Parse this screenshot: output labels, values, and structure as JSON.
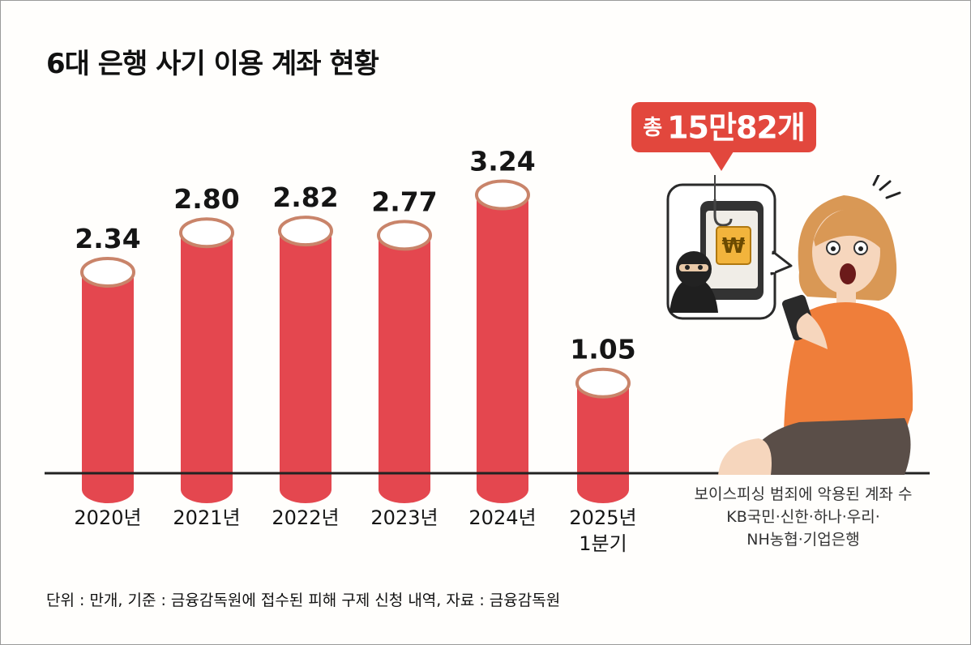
{
  "title": "6대 은행 사기 이용 계좌 현황",
  "callout": {
    "prefix": "총",
    "value": "15만82개"
  },
  "caption": [
    "보이스피싱 범죄에 악용된 계좌 수",
    "KB국민·신한·하나·우리·",
    "NH농협·기업은행"
  ],
  "footnote": "단위 : 만개, 기준 : 금융감독원에 접수된 피해 구제 신청 내역, 자료 : 금융감독원",
  "colors": {
    "bar": "#e4474f",
    "bar_rim": "#c9846a",
    "baseline": "#222222"
  },
  "icons": {
    "phone": "phone-icon",
    "hook": "fish-hook-icon",
    "won": "won-sign-icon",
    "thief": "masked-thief-icon"
  },
  "chart_data": {
    "type": "bar",
    "categories": [
      [
        "2020년"
      ],
      [
        "2021년"
      ],
      [
        "2022년"
      ],
      [
        "2023년"
      ],
      [
        "2024년"
      ],
      [
        "2025년",
        "1분기"
      ]
    ],
    "values": [
      2.34,
      2.8,
      2.82,
      2.77,
      3.24,
      1.05
    ],
    "data_labels": [
      "2.34",
      "2.80",
      "2.82",
      "2.77",
      "3.24",
      "1.05"
    ],
    "unit": "만개",
    "ylim": [
      0,
      3.5
    ],
    "grid": false
  }
}
